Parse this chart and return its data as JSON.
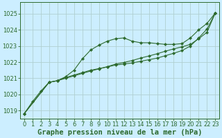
{
  "title": "Graphe pression niveau de la mer (hPa)",
  "bg_color": "#cceeff",
  "grid_color": "#b0d0d0",
  "line_color": "#2d6a2d",
  "xlim": [
    -0.5,
    23.5
  ],
  "ylim": [
    1018.5,
    1025.7
  ],
  "yticks": [
    1019,
    1020,
    1021,
    1022,
    1023,
    1024,
    1025
  ],
  "xticks": [
    0,
    1,
    2,
    3,
    4,
    5,
    6,
    7,
    8,
    9,
    10,
    11,
    12,
    13,
    14,
    15,
    16,
    17,
    18,
    19,
    20,
    21,
    22,
    23
  ],
  "series1_x": [
    0,
    1,
    2,
    3,
    4,
    5,
    6,
    7,
    8,
    9,
    10,
    11,
    12,
    13,
    14,
    15,
    16,
    17,
    18,
    19,
    20,
    21,
    22,
    23
  ],
  "series1_y": [
    1018.8,
    1019.55,
    1020.2,
    1020.75,
    1020.85,
    1021.1,
    1021.5,
    1022.2,
    1022.75,
    1023.05,
    1023.3,
    1023.45,
    1023.5,
    1023.3,
    1023.2,
    1023.2,
    1023.15,
    1023.1,
    1023.1,
    1023.15,
    1023.5,
    1024.0,
    1024.4,
    1025.05
  ],
  "series2_x": [
    0,
    3,
    4,
    5,
    6,
    7,
    8,
    9,
    10,
    11,
    12,
    13,
    14,
    15,
    16,
    17,
    18,
    19,
    20,
    21,
    22,
    23
  ],
  "series2_y": [
    1018.8,
    1020.75,
    1020.85,
    1021.05,
    1021.2,
    1021.35,
    1021.5,
    1021.6,
    1021.7,
    1021.82,
    1021.88,
    1021.95,
    1022.05,
    1022.15,
    1022.25,
    1022.4,
    1022.55,
    1022.72,
    1023.0,
    1023.5,
    1024.05,
    1025.05
  ],
  "series3_x": [
    0,
    3,
    4,
    5,
    6,
    7,
    8,
    9,
    10,
    11,
    12,
    13,
    14,
    15,
    16,
    17,
    18,
    19,
    20,
    21,
    22,
    23
  ],
  "series3_y": [
    1018.8,
    1020.75,
    1020.85,
    1021.0,
    1021.15,
    1021.3,
    1021.45,
    1021.58,
    1021.72,
    1021.88,
    1021.98,
    1022.1,
    1022.25,
    1022.38,
    1022.52,
    1022.68,
    1022.82,
    1022.95,
    1023.1,
    1023.45,
    1023.85,
    1025.05
  ],
  "title_color": "#2d6a2d",
  "title_fontsize": 7.5,
  "tick_fontsize": 6.0,
  "tick_color": "#2d6a2d"
}
